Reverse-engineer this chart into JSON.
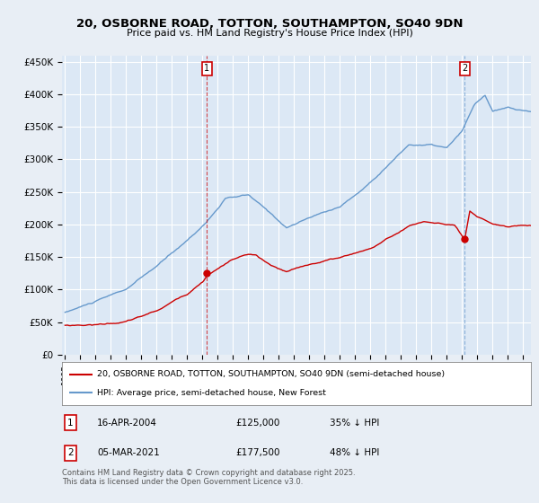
{
  "title": "20, OSBORNE ROAD, TOTTON, SOUTHAMPTON, SO40 9DN",
  "subtitle": "Price paid vs. HM Land Registry's House Price Index (HPI)",
  "background_color": "#e8eef5",
  "plot_bg_color": "#dce8f5",
  "grid_color": "#ffffff",
  "ylabel_ticks": [
    "£0",
    "£50K",
    "£100K",
    "£150K",
    "£200K",
    "£250K",
    "£300K",
    "£350K",
    "£400K",
    "£450K"
  ],
  "ytick_vals": [
    0,
    50000,
    100000,
    150000,
    200000,
    250000,
    300000,
    350000,
    400000,
    450000
  ],
  "ylim": [
    0,
    460000
  ],
  "xlim_start": 1994.8,
  "xlim_end": 2025.5,
  "marker1_x": 2004.29,
  "marker1_y": 125000,
  "marker2_x": 2021.17,
  "marker2_y": 177500,
  "marker1_label": "1",
  "marker1_date": "16-APR-2004",
  "marker1_price": "£125,000",
  "marker1_hpi": "35% ↓ HPI",
  "marker2_label": "2",
  "marker2_date": "05-MAR-2021",
  "marker2_price": "£177,500",
  "marker2_hpi": "48% ↓ HPI",
  "legend_line1": "20, OSBORNE ROAD, TOTTON, SOUTHAMPTON, SO40 9DN (semi-detached house)",
  "legend_line2": "HPI: Average price, semi-detached house, New Forest",
  "footer": "Contains HM Land Registry data © Crown copyright and database right 2025.\nThis data is licensed under the Open Government Licence v3.0.",
  "red_color": "#cc0000",
  "blue_color": "#6699cc",
  "marker_box_color": "#cc0000",
  "fig_width": 6.0,
  "fig_height": 5.6,
  "dpi": 100
}
